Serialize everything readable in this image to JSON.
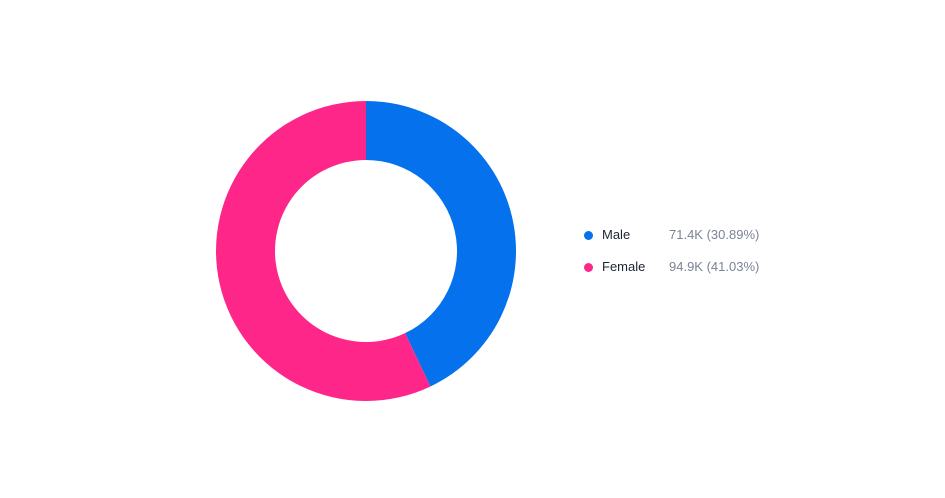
{
  "chart_data": {
    "type": "pie",
    "variant": "donut",
    "categories": [
      "Male",
      "Female"
    ],
    "values": [
      71.4,
      94.9
    ],
    "value_unit": "K",
    "labels": [
      "71.4K (30.89%)",
      "94.9K (41.03%)"
    ],
    "colors": [
      "#0571ec",
      "#fe2789"
    ],
    "legend_position": "right"
  }
}
